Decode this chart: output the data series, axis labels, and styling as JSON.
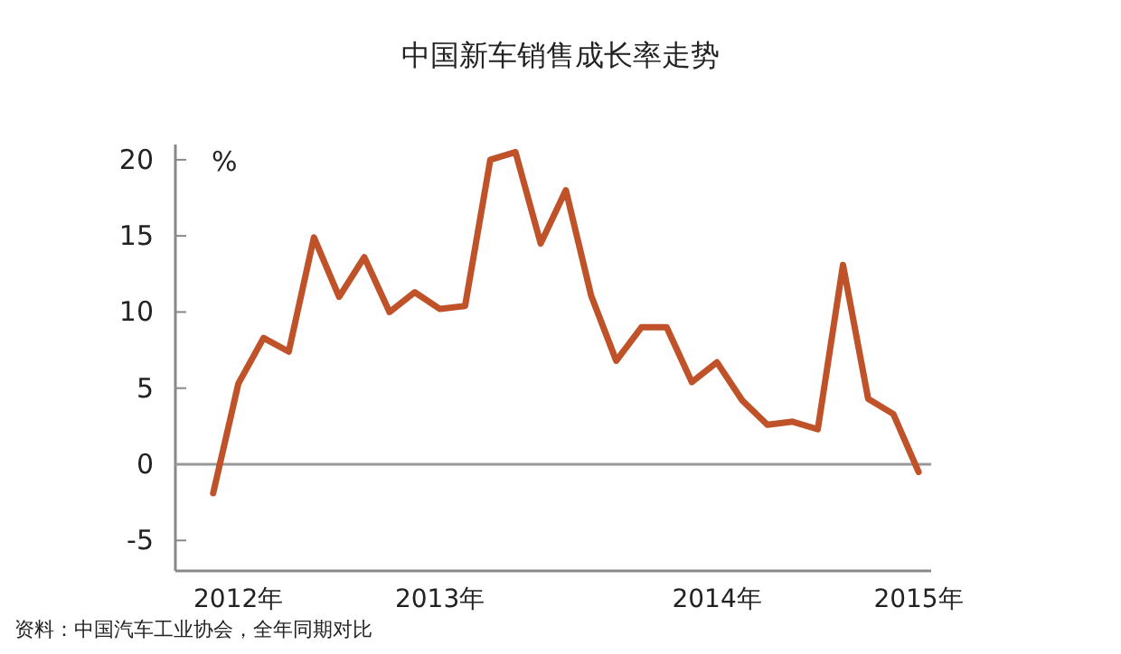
{
  "chart_data": {
    "type": "line",
    "title": "中国新车销售成长率走势",
    "ylabel": "%",
    "categories": [
      null,
      "2012年",
      null,
      null,
      null,
      null,
      null,
      null,
      null,
      "2013年",
      null,
      null,
      null,
      null,
      null,
      null,
      null,
      null,
      null,
      null,
      "2014年",
      null,
      null,
      null,
      null,
      null,
      null,
      null,
      "2015年"
    ],
    "series": [
      {
        "color": "#c0522a",
        "values": [
          -1.9,
          5.3,
          8.3,
          7.4,
          14.9,
          11.0,
          13.6,
          10.0,
          11.3,
          10.2,
          10.4,
          20.0,
          20.5,
          14.5,
          18.0,
          11.1,
          6.8,
          9.0,
          9.0,
          5.4,
          6.7,
          4.2,
          2.6,
          2.8,
          2.3,
          13.1,
          4.3,
          3.3,
          -0.5
        ]
      }
    ],
    "ylim": [
      -7,
      21
    ],
    "yticks": [
      -5,
      0,
      5,
      10,
      15,
      20
    ],
    "ref_lines": [
      {
        "axis": "y",
        "value": 0,
        "color": "#999999"
      }
    ],
    "grid": false,
    "marker": "none",
    "line_style": "solid",
    "annotations": [
      "资料：中国汽车工业协会，全年同期对比"
    ]
  }
}
